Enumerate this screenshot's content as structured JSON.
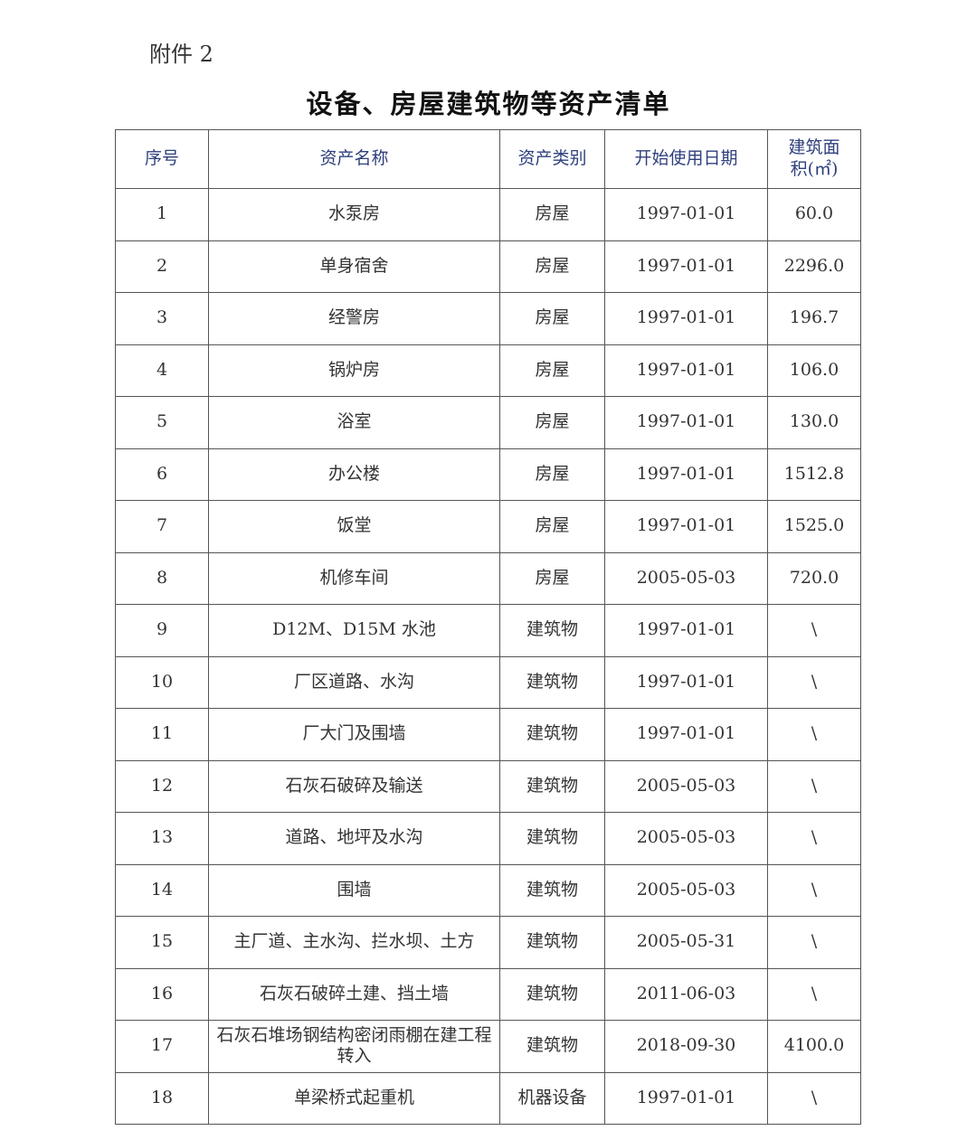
{
  "attachment_label": "附件 2",
  "title": "设备、房屋建筑物等资产清单",
  "table": {
    "headers": [
      "序号",
      "资产名称",
      "资产类别",
      "开始使用日期",
      "建筑面积(㎡)"
    ],
    "rows": [
      [
        "1",
        "水泵房",
        "房屋",
        "1997-01-01",
        "60.0"
      ],
      [
        "2",
        "单身宿舍",
        "房屋",
        "1997-01-01",
        "2296.0"
      ],
      [
        "3",
        "经警房",
        "房屋",
        "1997-01-01",
        "196.7"
      ],
      [
        "4",
        "锅炉房",
        "房屋",
        "1997-01-01",
        "106.0"
      ],
      [
        "5",
        "浴室",
        "房屋",
        "1997-01-01",
        "130.0"
      ],
      [
        "6",
        "办公楼",
        "房屋",
        "1997-01-01",
        "1512.8"
      ],
      [
        "7",
        "饭堂",
        "房屋",
        "1997-01-01",
        "1525.0"
      ],
      [
        "8",
        "机修车间",
        "房屋",
        "2005-05-03",
        "720.0"
      ],
      [
        "9",
        "D12M、D15M 水池",
        "建筑物",
        "1997-01-01",
        "\\"
      ],
      [
        "10",
        "厂区道路、水沟",
        "建筑物",
        "1997-01-01",
        "\\"
      ],
      [
        "11",
        "厂大门及围墙",
        "建筑物",
        "1997-01-01",
        "\\"
      ],
      [
        "12",
        "石灰石破碎及输送",
        "建筑物",
        "2005-05-03",
        "\\"
      ],
      [
        "13",
        "道路、地坪及水沟",
        "建筑物",
        "2005-05-03",
        "\\"
      ],
      [
        "14",
        "围墙",
        "建筑物",
        "2005-05-03",
        "\\"
      ],
      [
        "15",
        "主厂道、主水沟、拦水坝、土方",
        "建筑物",
        "2005-05-31",
        "\\"
      ],
      [
        "16",
        "石灰石破碎土建、挡土墙",
        "建筑物",
        "2011-06-03",
        "\\"
      ],
      [
        "17",
        "石灰石堆场钢结构密闭雨棚在建工程转入",
        "建筑物",
        "2018-09-30",
        "4100.0"
      ],
      [
        "18",
        "单梁桥式起重机",
        "机器设备",
        "1997-01-01",
        "\\"
      ]
    ]
  }
}
